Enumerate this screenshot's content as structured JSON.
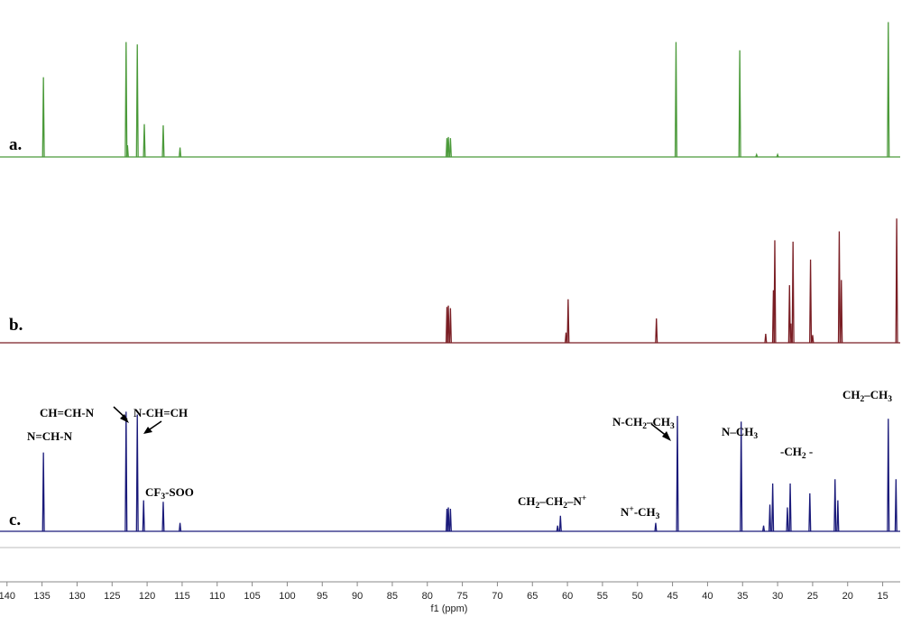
{
  "chart_data": {
    "type": "line",
    "xlabel": "f1 (ppm)",
    "xlim": [
      141,
      12.5
    ],
    "x_ticks": [
      140,
      135,
      130,
      125,
      120,
      115,
      110,
      105,
      100,
      95,
      90,
      85,
      80,
      75,
      70,
      65,
      60,
      55,
      50,
      45,
      40,
      35,
      30,
      25,
      20,
      15
    ],
    "grid": false,
    "legend": "none",
    "series": [
      {
        "name": "a.",
        "color": "#4b9a3a",
        "peaks": [
          {
            "ppm": 134.8,
            "h": 0.68
          },
          {
            "ppm": 123.0,
            "h": 0.98
          },
          {
            "ppm": 122.8,
            "h": 0.1
          },
          {
            "ppm": 121.4,
            "h": 0.96
          },
          {
            "ppm": 120.4,
            "h": 0.28
          },
          {
            "ppm": 117.7,
            "h": 0.27
          },
          {
            "ppm": 115.3,
            "h": 0.08
          },
          {
            "ppm": 77.2,
            "h": 0.16
          },
          {
            "ppm": 77.0,
            "h": 0.17
          },
          {
            "ppm": 76.7,
            "h": 0.16
          },
          {
            "ppm": 44.5,
            "h": 0.98
          },
          {
            "ppm": 35.4,
            "h": 0.91
          },
          {
            "ppm": 33.0,
            "h": 0.02
          },
          {
            "ppm": 30.0,
            "h": 0.02
          },
          {
            "ppm": 14.2,
            "h": 1.15
          }
        ]
      },
      {
        "name": "b.",
        "color": "#7a1e24",
        "peaks": [
          {
            "ppm": 77.2,
            "h": 0.28
          },
          {
            "ppm": 77.0,
            "h": 0.29
          },
          {
            "ppm": 76.7,
            "h": 0.27
          },
          {
            "ppm": 60.2,
            "h": 0.08
          },
          {
            "ppm": 59.9,
            "h": 0.34
          },
          {
            "ppm": 47.3,
            "h": 0.19
          },
          {
            "ppm": 31.7,
            "h": 0.07
          },
          {
            "ppm": 30.6,
            "h": 0.41
          },
          {
            "ppm": 30.4,
            "h": 0.8
          },
          {
            "ppm": 28.3,
            "h": 0.45
          },
          {
            "ppm": 28.1,
            "h": 0.15
          },
          {
            "ppm": 27.8,
            "h": 0.79
          },
          {
            "ppm": 25.3,
            "h": 0.65
          },
          {
            "ppm": 25.0,
            "h": 0.06
          },
          {
            "ppm": 21.2,
            "h": 0.87
          },
          {
            "ppm": 20.9,
            "h": 0.49
          },
          {
            "ppm": 13.0,
            "h": 0.97
          }
        ]
      },
      {
        "name": "c.",
        "color": "#1a1a7a",
        "peaks": [
          {
            "ppm": 134.8,
            "h": 0.56
          },
          {
            "ppm": 123.0,
            "h": 0.85
          },
          {
            "ppm": 121.4,
            "h": 0.83
          },
          {
            "ppm": 120.5,
            "h": 0.22
          },
          {
            "ppm": 117.7,
            "h": 0.21
          },
          {
            "ppm": 115.3,
            "h": 0.06
          },
          {
            "ppm": 77.2,
            "h": 0.16
          },
          {
            "ppm": 77.0,
            "h": 0.17
          },
          {
            "ppm": 76.7,
            "h": 0.16
          },
          {
            "ppm": 61.4,
            "h": 0.04
          },
          {
            "ppm": 61.0,
            "h": 0.11
          },
          {
            "ppm": 47.4,
            "h": 0.06
          },
          {
            "ppm": 44.3,
            "h": 0.82
          },
          {
            "ppm": 35.2,
            "h": 0.78
          },
          {
            "ppm": 32.0,
            "h": 0.04
          },
          {
            "ppm": 31.1,
            "h": 0.19
          },
          {
            "ppm": 30.7,
            "h": 0.34
          },
          {
            "ppm": 28.6,
            "h": 0.17
          },
          {
            "ppm": 28.2,
            "h": 0.34
          },
          {
            "ppm": 25.4,
            "h": 0.27
          },
          {
            "ppm": 21.8,
            "h": 0.37
          },
          {
            "ppm": 21.4,
            "h": 0.22
          },
          {
            "ppm": 14.2,
            "h": 0.8
          },
          {
            "ppm": 13.1,
            "h": 0.37
          }
        ]
      }
    ],
    "annotations": [
      {
        "id": "n-ch-n",
        "parts": [
          [
            "N=CH-N",
            ""
          ]
        ]
      },
      {
        "id": "ch-ch-n",
        "parts": [
          [
            "CH=CH-N",
            ""
          ]
        ]
      },
      {
        "id": "n-ch-ch",
        "parts": [
          [
            "N-CH=CH",
            ""
          ]
        ]
      },
      {
        "id": "cf3-soo",
        "parts": [
          [
            "CF",
            ""
          ],
          [
            "3",
            "sub"
          ],
          [
            "-SOO",
            ""
          ]
        ]
      },
      {
        "id": "ch2-ch2-n",
        "parts": [
          [
            "CH",
            ""
          ],
          [
            "2",
            "sub"
          ],
          [
            "–CH",
            ""
          ],
          [
            "2",
            "sub"
          ],
          [
            "–N",
            ""
          ],
          [
            "+",
            "sup"
          ]
        ]
      },
      {
        "id": "n-plus-ch3",
        "parts": [
          [
            "N",
            ""
          ],
          [
            "+",
            "sup"
          ],
          [
            "-CH",
            ""
          ],
          [
            "3",
            "sub"
          ]
        ]
      },
      {
        "id": "n-ch2-ch3",
        "parts": [
          [
            "N-CH",
            ""
          ],
          [
            "2",
            "sub"
          ],
          [
            "–CH",
            ""
          ],
          [
            "3",
            "sub"
          ]
        ]
      },
      {
        "id": "n-ch3",
        "parts": [
          [
            "N–CH",
            ""
          ],
          [
            "3",
            "sub"
          ]
        ]
      },
      {
        "id": "ch2-chain",
        "parts": [
          [
            "-CH",
            ""
          ],
          [
            "2",
            "sub"
          ],
          [
            " -",
            ""
          ]
        ]
      },
      {
        "id": "ch2-ch3",
        "parts": [
          [
            "CH",
            ""
          ],
          [
            "2",
            "sub"
          ],
          [
            "–CH",
            ""
          ],
          [
            "3",
            "sub"
          ]
        ]
      }
    ]
  }
}
